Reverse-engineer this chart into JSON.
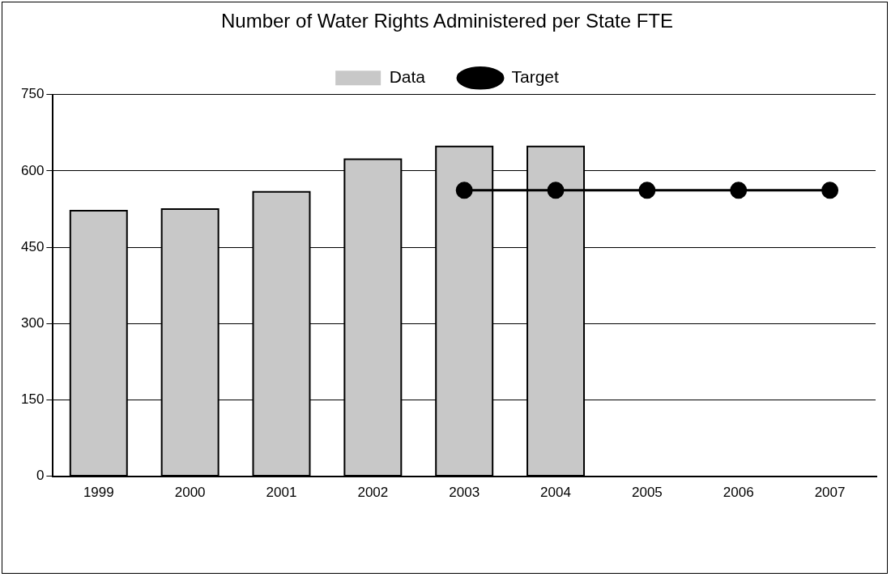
{
  "chart_data": {
    "type": "bar",
    "title": "Number of Water Rights Administered per State FTE",
    "categories": [
      "1999",
      "2000",
      "2001",
      "2002",
      "2003",
      "2004",
      "2005",
      "2006",
      "2007"
    ],
    "series": [
      {
        "name": "Data",
        "color": "#c8c8c8",
        "values": [
          522,
          525,
          559,
          623,
          648,
          648,
          null,
          null,
          null
        ]
      },
      {
        "name": "Target",
        "type": "line",
        "color": "#000000",
        "marker": "circle",
        "values": [
          null,
          null,
          null,
          null,
          562,
          562,
          562,
          562,
          562
        ]
      }
    ],
    "ylim": [
      0,
      750
    ],
    "yticks": [
      0,
      150,
      300,
      450,
      600,
      750
    ],
    "grid": "y",
    "legend": "top"
  }
}
